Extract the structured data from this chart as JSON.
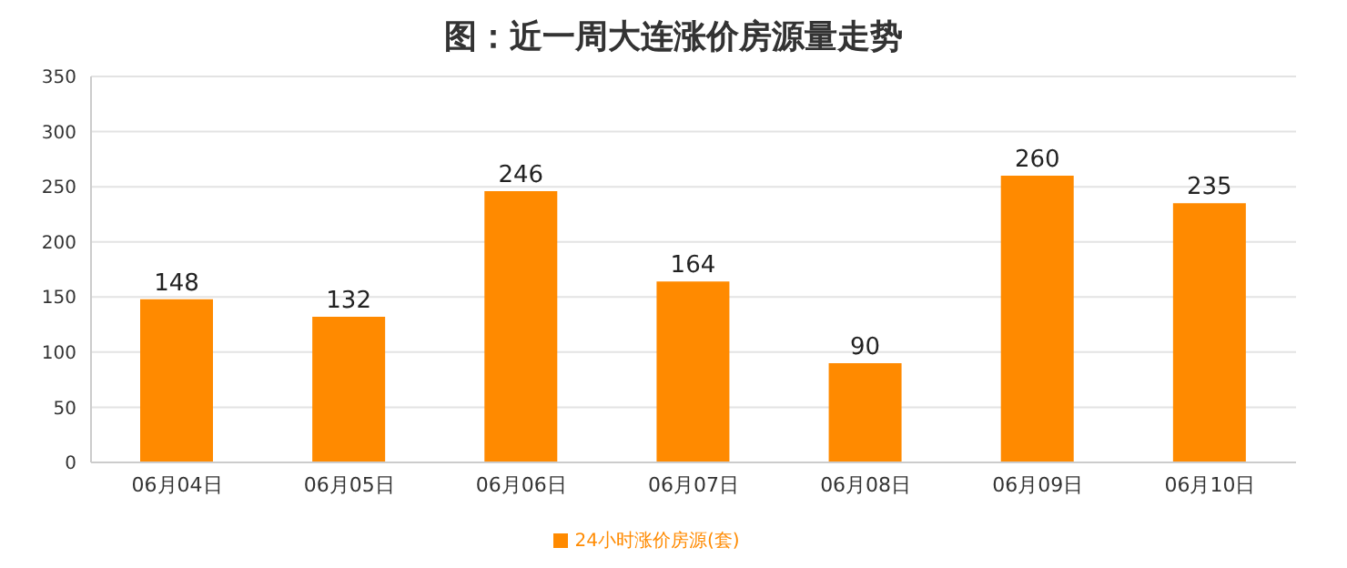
{
  "chart_data": {
    "type": "bar",
    "title": "图：近一周大连涨价房源量走势",
    "categories": [
      "06月04日",
      "06月05日",
      "06月06日",
      "06月07日",
      "06月08日",
      "06月09日",
      "06月10日"
    ],
    "series": [
      {
        "name": "24小时涨价房源(套)",
        "color": "#ff8a00",
        "values": [
          148,
          132,
          246,
          164,
          90,
          260,
          235
        ]
      }
    ],
    "ylim": [
      0,
      350
    ],
    "yticks": [
      0,
      50,
      100,
      150,
      200,
      250,
      300,
      350
    ],
    "grid": "y",
    "legend": "bottom",
    "data_labels": true
  }
}
